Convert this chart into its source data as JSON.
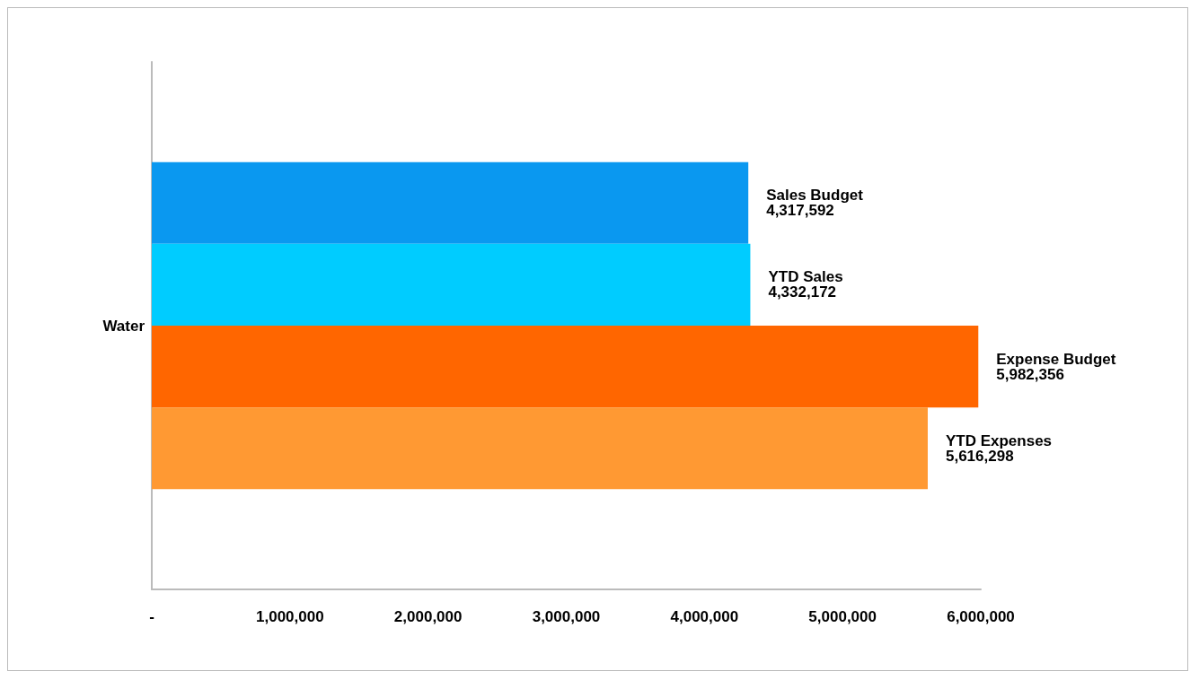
{
  "chart_data": {
    "type": "bar",
    "orientation": "horizontal",
    "categories": [
      "Water"
    ],
    "series": [
      {
        "name": "Sales Budget",
        "color": "#0a98f0",
        "values": [
          4317592
        ],
        "value_labels": [
          "4,317,592"
        ]
      },
      {
        "name": "YTD Sales",
        "color": "#00ccff",
        "values": [
          4332172
        ],
        "value_labels": [
          "4,332,172"
        ]
      },
      {
        "name": "Expense Budget",
        "color": "#ff6600",
        "values": [
          5982356
        ],
        "value_labels": [
          "5,982,356"
        ]
      },
      {
        "name": "YTD Expenses",
        "color": "#ff9933",
        "values": [
          5616298
        ],
        "value_labels": [
          "5,616,298"
        ]
      }
    ],
    "xlim": [
      0,
      6000000
    ],
    "xticks": [
      {
        "value": 0,
        "label": "-"
      },
      {
        "value": 1000000,
        "label": "1,000,000"
      },
      {
        "value": 2000000,
        "label": "2,000,000"
      },
      {
        "value": 3000000,
        "label": "3,000,000"
      },
      {
        "value": 4000000,
        "label": "4,000,000"
      },
      {
        "value": 5000000,
        "label": "5,000,000"
      },
      {
        "value": 6000000,
        "label": "6,000,000"
      }
    ],
    "grid": false,
    "legend": false
  }
}
